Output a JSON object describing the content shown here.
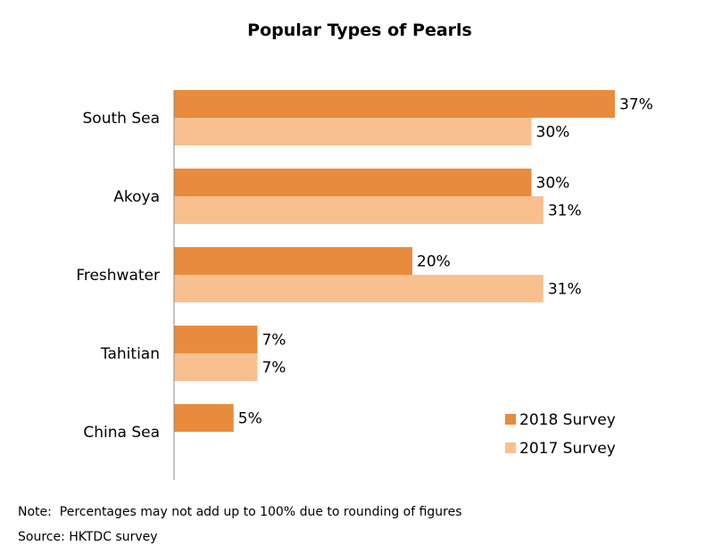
{
  "colors": {
    "series_2018": "#e98b3c",
    "series_2017": "#f9c08f",
    "axis": "#888888"
  },
  "footnotes": {
    "note": "Note:  Percentages may not add up to 100% due to rounding of figures",
    "source": "Source: HKTDC survey"
  },
  "chart_data": {
    "type": "bar",
    "orientation": "horizontal",
    "title": "Popular Types of Pearls",
    "categories": [
      "South Sea",
      "Akoya",
      "Freshwater",
      "Tahitian",
      "China Sea"
    ],
    "series": [
      {
        "name": "2018 Survey",
        "values": [
          37,
          30,
          20,
          7,
          5
        ]
      },
      {
        "name": "2017 Survey",
        "values": [
          30,
          31,
          31,
          7,
          null
        ]
      }
    ],
    "value_suffix": "%",
    "xlim": [
      0,
      40
    ],
    "grid": false,
    "legend_position": "bottom-right"
  }
}
